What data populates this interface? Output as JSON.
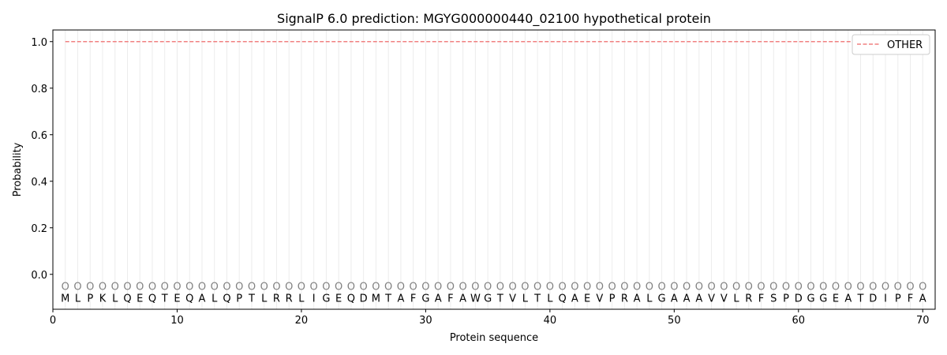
{
  "chart_data": {
    "type": "line",
    "title": "SignalP 6.0 prediction: MGYG000000440_02100 hypothetical protein",
    "xlabel": "Protein sequence",
    "ylabel": "Probability",
    "xlim": [
      0,
      71
    ],
    "ylim": [
      -0.15,
      1.05
    ],
    "xticks": [
      0,
      10,
      20,
      30,
      40,
      50,
      60,
      70
    ],
    "yticks": [
      0.0,
      0.2,
      0.4,
      0.6,
      0.8,
      1.0
    ],
    "ytick_labels": [
      "0.0",
      "0.2",
      "0.4",
      "0.6",
      "0.8",
      "1.0"
    ],
    "grid": "vertical lines at each residue",
    "legend_placement": "top-right",
    "sequence": [
      "M",
      "L",
      "P",
      "K",
      "L",
      "Q",
      "E",
      "Q",
      "T",
      "E",
      "Q",
      "A",
      "L",
      "Q",
      "P",
      "T",
      "L",
      "R",
      "R",
      "L",
      "I",
      "G",
      "E",
      "Q",
      "D",
      "M",
      "T",
      "A",
      "F",
      "G",
      "A",
      "F",
      "A",
      "W",
      "G",
      "T",
      "V",
      "L",
      "T",
      "L",
      "Q",
      "A",
      "E",
      "V",
      "P",
      "R",
      "A",
      "L",
      "G",
      "A",
      "A",
      "A",
      "V",
      "V",
      "L",
      "R",
      "F",
      "S",
      "P",
      "D",
      "G",
      "G",
      "E",
      "A",
      "T",
      "D",
      "I",
      "P",
      "F",
      "A"
    ],
    "predicted_label": "O",
    "series": [
      {
        "name": "OTHER",
        "color": "#f08080",
        "style": "dashed",
        "x_range": [
          1,
          70
        ],
        "value": 1.0
      }
    ]
  }
}
